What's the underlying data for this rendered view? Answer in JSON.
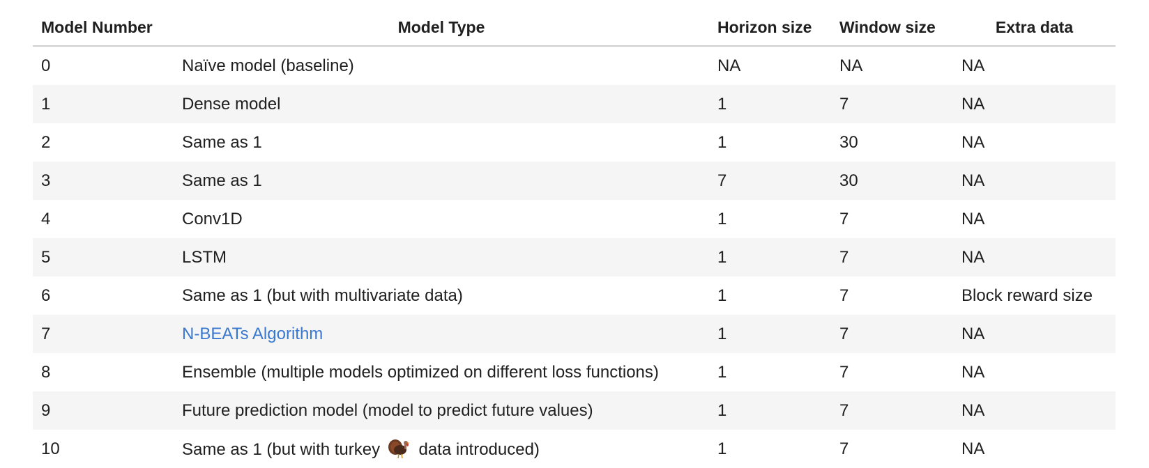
{
  "table": {
    "headers": [
      "Model Number",
      "Model Type",
      "Horizon size",
      "Window size",
      "Extra data"
    ],
    "rows": [
      {
        "num": "0",
        "type": "Naïve model (baseline)",
        "horizon": "NA",
        "window": "NA",
        "extra": "NA"
      },
      {
        "num": "1",
        "type": "Dense model",
        "horizon": "1",
        "window": "7",
        "extra": "NA"
      },
      {
        "num": "2",
        "type": "Same as 1",
        "horizon": "1",
        "window": "30",
        "extra": "NA"
      },
      {
        "num": "3",
        "type": "Same as 1",
        "horizon": "7",
        "window": "30",
        "extra": "NA"
      },
      {
        "num": "4",
        "type": "Conv1D",
        "horizon": "1",
        "window": "7",
        "extra": "NA"
      },
      {
        "num": "5",
        "type": "LSTM",
        "horizon": "1",
        "window": "7",
        "extra": "NA"
      },
      {
        "num": "6",
        "type": "Same as 1 (but with multivariate data)",
        "horizon": "1",
        "window": "7",
        "extra": "Block reward size"
      },
      {
        "num": "7",
        "type": "N-BEATs Algorithm",
        "horizon": "1",
        "window": "7",
        "extra": "NA"
      },
      {
        "num": "8",
        "type": "Ensemble (multiple models optimized on different loss functions)",
        "horizon": "1",
        "window": "7",
        "extra": "NA"
      },
      {
        "num": "9",
        "type": "Future prediction model (model to predict future values)",
        "horizon": "1",
        "window": "7",
        "extra": "NA"
      },
      {
        "num": "10",
        "type_before": "Same as 1 (but with turkey",
        "type_after": "data introduced)",
        "horizon": "1",
        "window": "7",
        "extra": "NA"
      }
    ]
  },
  "icons": {
    "turkey": "turkey-icon"
  },
  "colors": {
    "link": "#3a78d0",
    "stripe": "#f5f5f5",
    "header_rule": "#cfcfcf"
  }
}
